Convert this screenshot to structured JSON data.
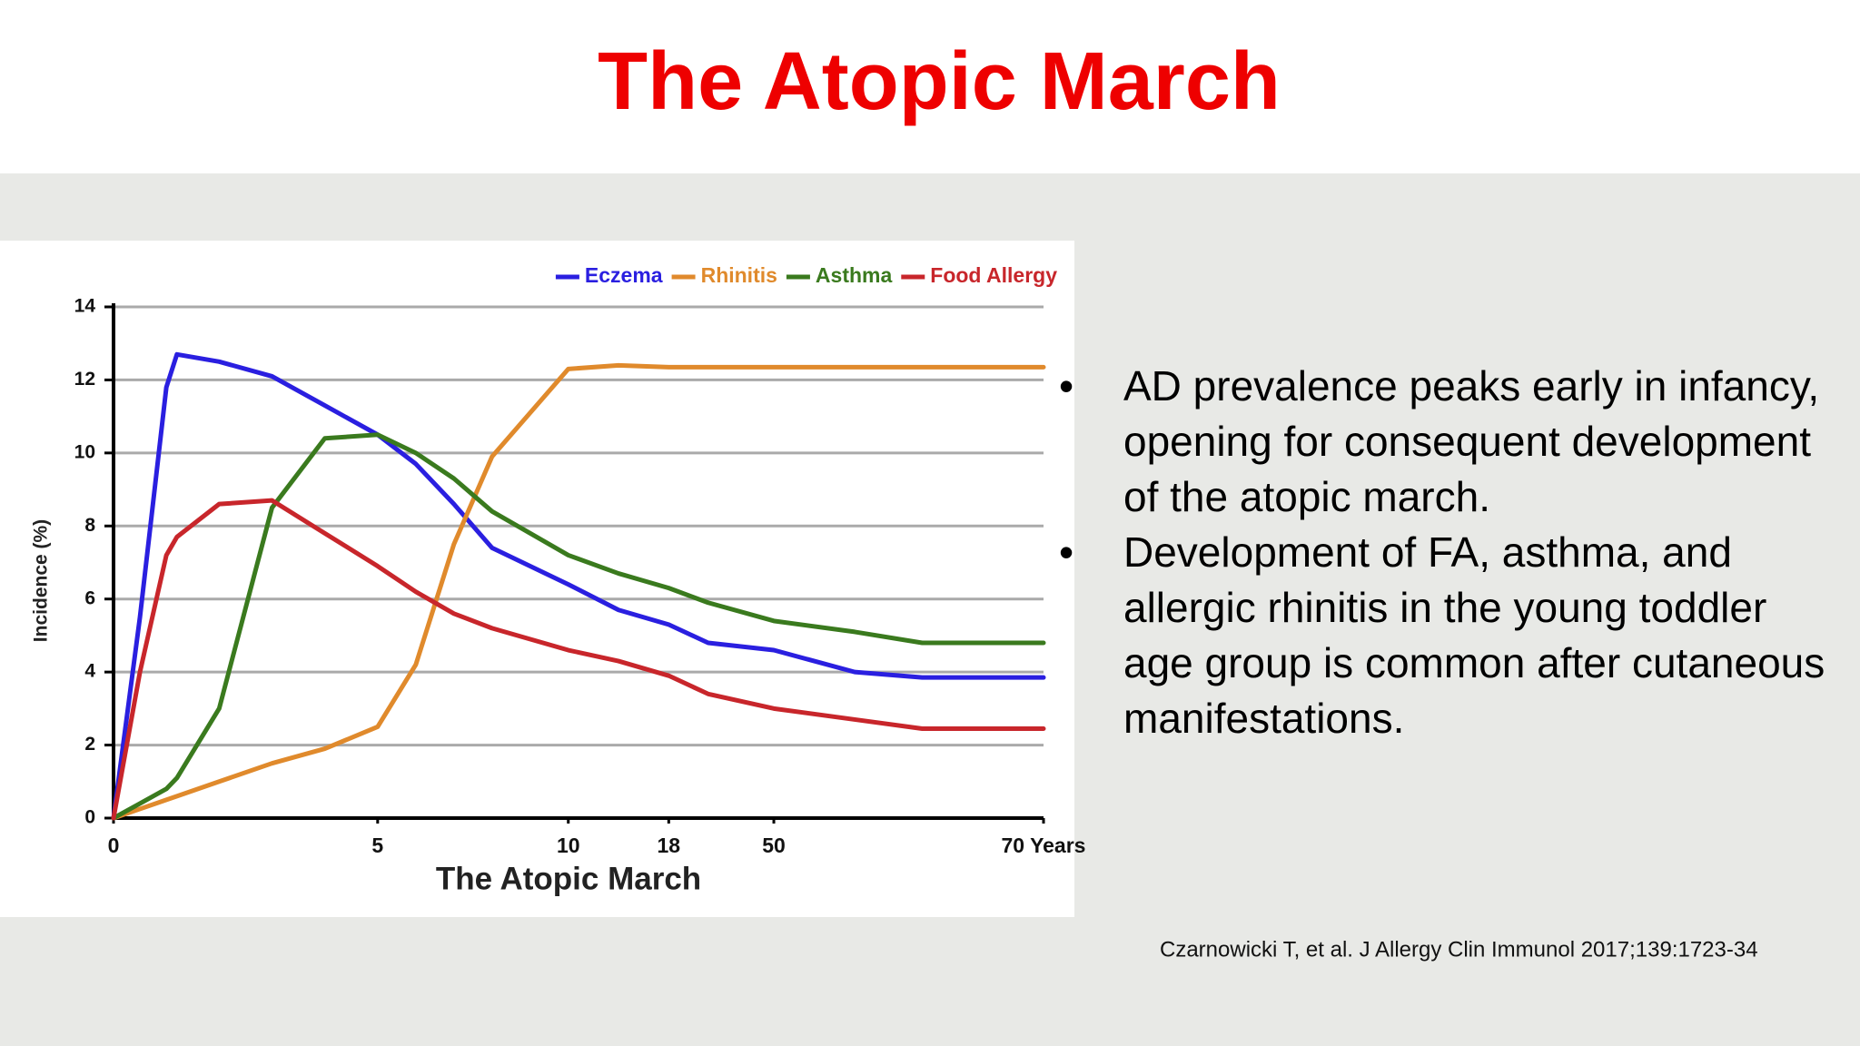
{
  "title": "The Atopic March",
  "bullets": [
    "AD prevalence peaks early in infancy, opening for consequent development of the atopic march.",
    "Development of FA, asthma, and allergic rhinitis in the young toddler age group is common after cutaneous manifestations."
  ],
  "citation": "Czarnowicki T, et al. J Allergy Clin Immunol 2017;139:1723-34",
  "chart_data": {
    "type": "line",
    "x_label": "The Atopic March",
    "y_label": "Incidence (%)",
    "x": [
      0,
      0.5,
      1,
      1.2,
      2,
      3,
      4,
      5,
      6,
      7,
      8,
      10,
      14,
      18,
      30,
      50,
      56,
      61,
      70
    ],
    "xlim": [
      0,
      70
    ],
    "xticks": [
      0,
      5,
      10,
      18,
      50,
      {
        "value": 70,
        "label": "70 Years"
      }
    ],
    "ylim": [
      0,
      14
    ],
    "yticks": [
      0,
      2,
      4,
      6,
      8,
      10,
      12,
      14
    ],
    "grid": true,
    "legend": "top-right",
    "series": [
      {
        "name": "Eczema",
        "color": "#2a1fe0",
        "values": [
          0,
          5.5,
          11.8,
          12.7,
          12.5,
          12.1,
          11.3,
          10.5,
          9.7,
          8.6,
          7.4,
          6.4,
          5.7,
          5.3,
          4.8,
          4.6,
          4.0,
          3.85,
          3.85
        ]
      },
      {
        "name": "Rhinitis",
        "color": "#e08a2c",
        "values": [
          0,
          0.25,
          0.5,
          0.6,
          1.0,
          1.5,
          1.9,
          2.5,
          4.2,
          7.5,
          9.9,
          12.3,
          12.4,
          12.35,
          12.35,
          12.35,
          12.35,
          12.35,
          12.35
        ]
      },
      {
        "name": "Asthma",
        "color": "#3a7a1e",
        "values": [
          0,
          0.4,
          0.8,
          1.1,
          3.0,
          8.5,
          10.4,
          10.5,
          10.0,
          9.3,
          8.4,
          7.2,
          6.7,
          6.3,
          5.9,
          5.4,
          5.1,
          4.8,
          4.8
        ]
      },
      {
        "name": "Food Allergy",
        "color": "#c8262b",
        "values": [
          0,
          4.0,
          7.2,
          7.7,
          8.6,
          8.7,
          7.8,
          6.9,
          6.2,
          5.6,
          5.2,
          4.6,
          4.3,
          3.9,
          3.4,
          3.0,
          2.7,
          2.45,
          2.45
        ]
      }
    ]
  }
}
